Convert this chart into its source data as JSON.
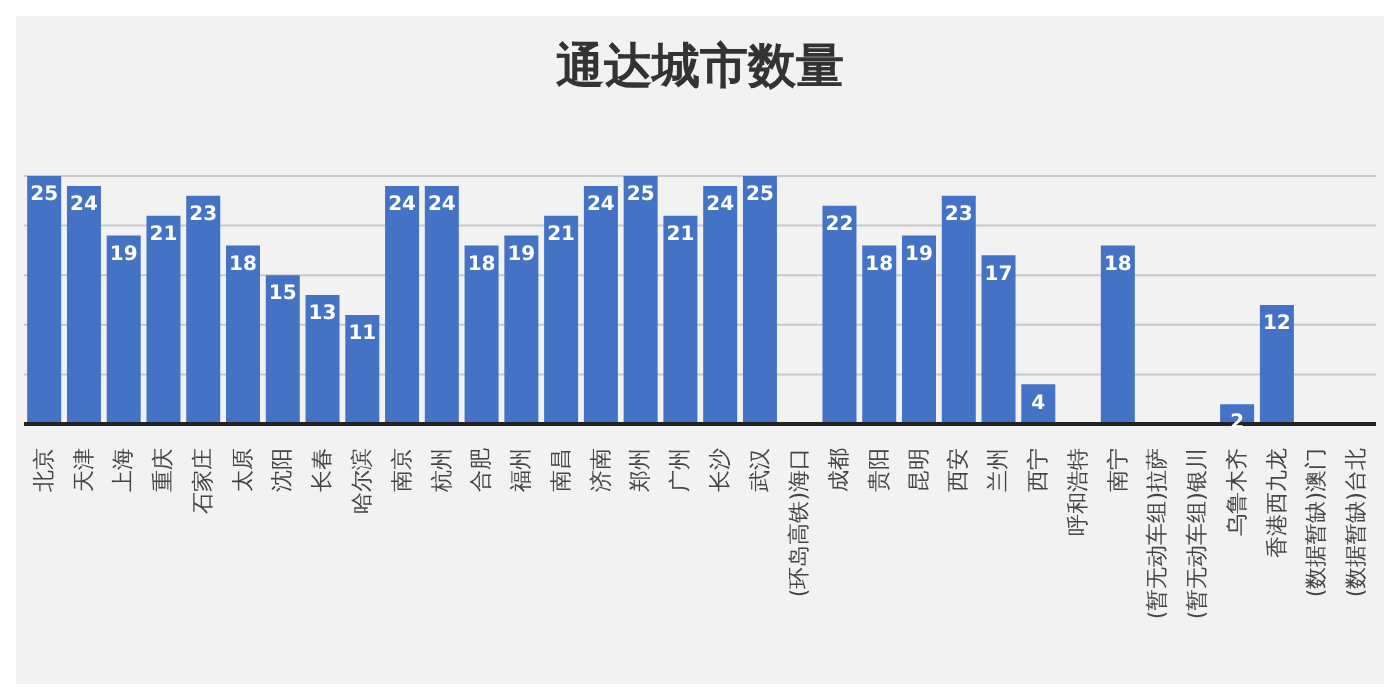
{
  "chart_data": {
    "type": "bar",
    "title": "通达城市数量",
    "categories": [
      "北京",
      "天津",
      "上海",
      "重庆",
      "石家庄",
      "太原",
      "沈阳",
      "长春",
      "哈尔滨",
      "南京",
      "杭州",
      "合肥",
      "福州",
      "南昌",
      "济南",
      "郑州",
      "广州",
      "长沙",
      "武汉",
      "(环岛高铁)海口",
      "成都",
      "贵阳",
      "昆明",
      "西安",
      "兰州",
      "西宁",
      "呼和浩特",
      "南宁",
      "(暂无动车组)拉萨",
      "(暂无动车组)银川",
      "乌鲁木齐",
      "香港西九龙",
      "(数据暂缺)澳门",
      "(数据暂缺)台北"
    ],
    "values": [
      25,
      24,
      19,
      21,
      23,
      18,
      15,
      13,
      11,
      24,
      24,
      18,
      19,
      21,
      24,
      25,
      21,
      24,
      25,
      null,
      22,
      18,
      19,
      23,
      17,
      4,
      null,
      18,
      null,
      null,
      2,
      12,
      null,
      null
    ],
    "color": "#4472c4",
    "ylim": [
      0,
      25
    ],
    "tick_labels": "x",
    "grid": "y",
    "data_labels": true
  }
}
